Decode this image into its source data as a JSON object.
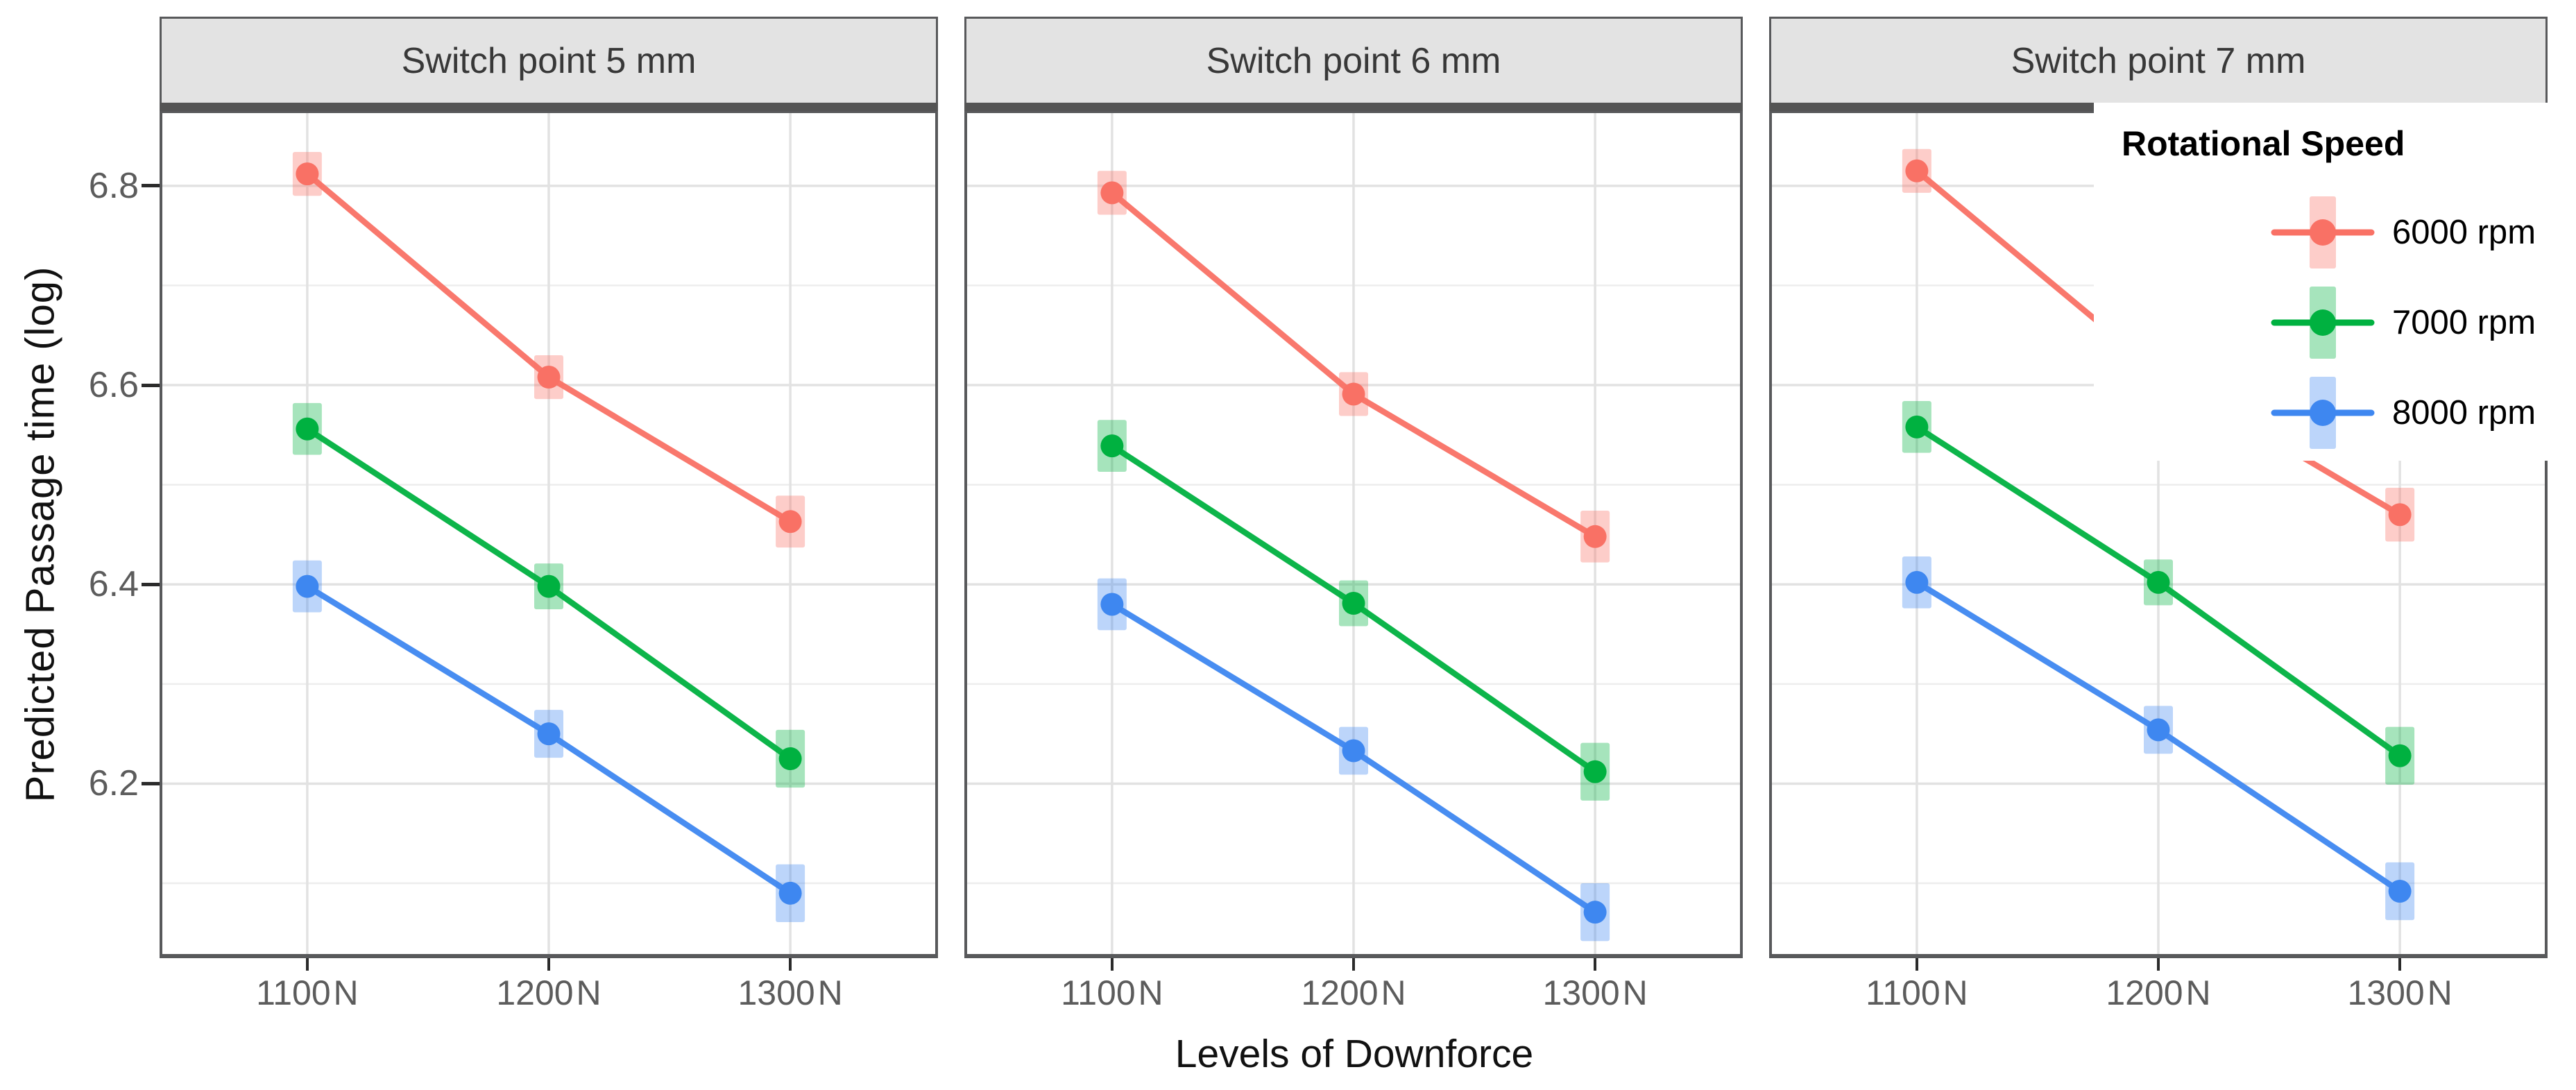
{
  "figure": {
    "background": "#ffffff",
    "panel_background": "#ffffff",
    "strip_background": "#e3e3e3",
    "strip_underline_color": "#545454",
    "panel_border_color": "#58595b",
    "gridline_major_color": "#e2e2e2",
    "gridline_minor_color": "#ededed",
    "tick_label_color": "#5c5c5c",
    "axis_title_color": "#111111"
  },
  "chart_data": {
    "type": "line",
    "subtype": "faceted interaction plot with translucent error bands",
    "xlabel": "Levels of Downforce",
    "ylabel": "Predicted Passage time (log)",
    "categories": [
      "1100 N",
      "1200 N",
      "1300 N"
    ],
    "ylim": [
      6.029,
      6.873
    ],
    "yticks_major": [
      6.2,
      6.4,
      6.6,
      6.8
    ],
    "yticks_minor": [
      6.1,
      6.3,
      6.5,
      6.7
    ],
    "grid": true,
    "legend": {
      "title": "Rotational Speed",
      "position": "top-right-inside-third-panel",
      "entries": [
        {
          "label": "6000 rpm",
          "color": "#F97165",
          "band_color": "#F97165",
          "band_opacity": 0.35
        },
        {
          "label": "7000 rpm",
          "color": "#00B140",
          "band_color": "#00B140",
          "band_opacity": 0.35
        },
        {
          "label": "8000 rpm",
          "color": "#3E87F0",
          "band_color": "#3E87F0",
          "band_opacity": 0.35
        }
      ]
    },
    "facets": [
      {
        "label": "Switch point 5 mm",
        "series": [
          {
            "name": "6000 rpm",
            "color": "#F97165",
            "values": [
              6.812,
              6.608,
              6.463
            ],
            "errors": [
              0.022,
              0.022,
              0.026
            ]
          },
          {
            "name": "7000 rpm",
            "color": "#00B140",
            "values": [
              6.556,
              6.398,
              6.225
            ],
            "errors": [
              0.026,
              0.023,
              0.029
            ]
          },
          {
            "name": "8000 rpm",
            "color": "#3E87F0",
            "values": [
              6.398,
              6.25,
              6.09
            ],
            "errors": [
              0.026,
              0.024,
              0.029
            ]
          }
        ]
      },
      {
        "label": "Switch point 6 mm",
        "series": [
          {
            "name": "6000 rpm",
            "color": "#F97165",
            "values": [
              6.793,
              6.591,
              6.448
            ],
            "errors": [
              0.022,
              0.022,
              0.026
            ]
          },
          {
            "name": "7000 rpm",
            "color": "#00B140",
            "values": [
              6.539,
              6.381,
              6.212
            ],
            "errors": [
              0.026,
              0.023,
              0.029
            ]
          },
          {
            "name": "8000 rpm",
            "color": "#3E87F0",
            "values": [
              6.38,
              6.233,
              6.071
            ],
            "errors": [
              0.026,
              0.024,
              0.029
            ]
          }
        ]
      },
      {
        "label": "Switch point 7 mm",
        "series": [
          {
            "name": "6000 rpm",
            "color": "#F97165",
            "values": [
              6.815,
              6.613,
              6.47
            ],
            "errors": [
              0.022,
              0.022,
              0.027
            ]
          },
          {
            "name": "7000 rpm",
            "color": "#00B140",
            "values": [
              6.558,
              6.402,
              6.228
            ],
            "errors": [
              0.026,
              0.023,
              0.029
            ]
          },
          {
            "name": "8000 rpm",
            "color": "#3E87F0",
            "values": [
              6.402,
              6.254,
              6.092
            ],
            "errors": [
              0.026,
              0.024,
              0.029
            ]
          }
        ]
      }
    ]
  }
}
